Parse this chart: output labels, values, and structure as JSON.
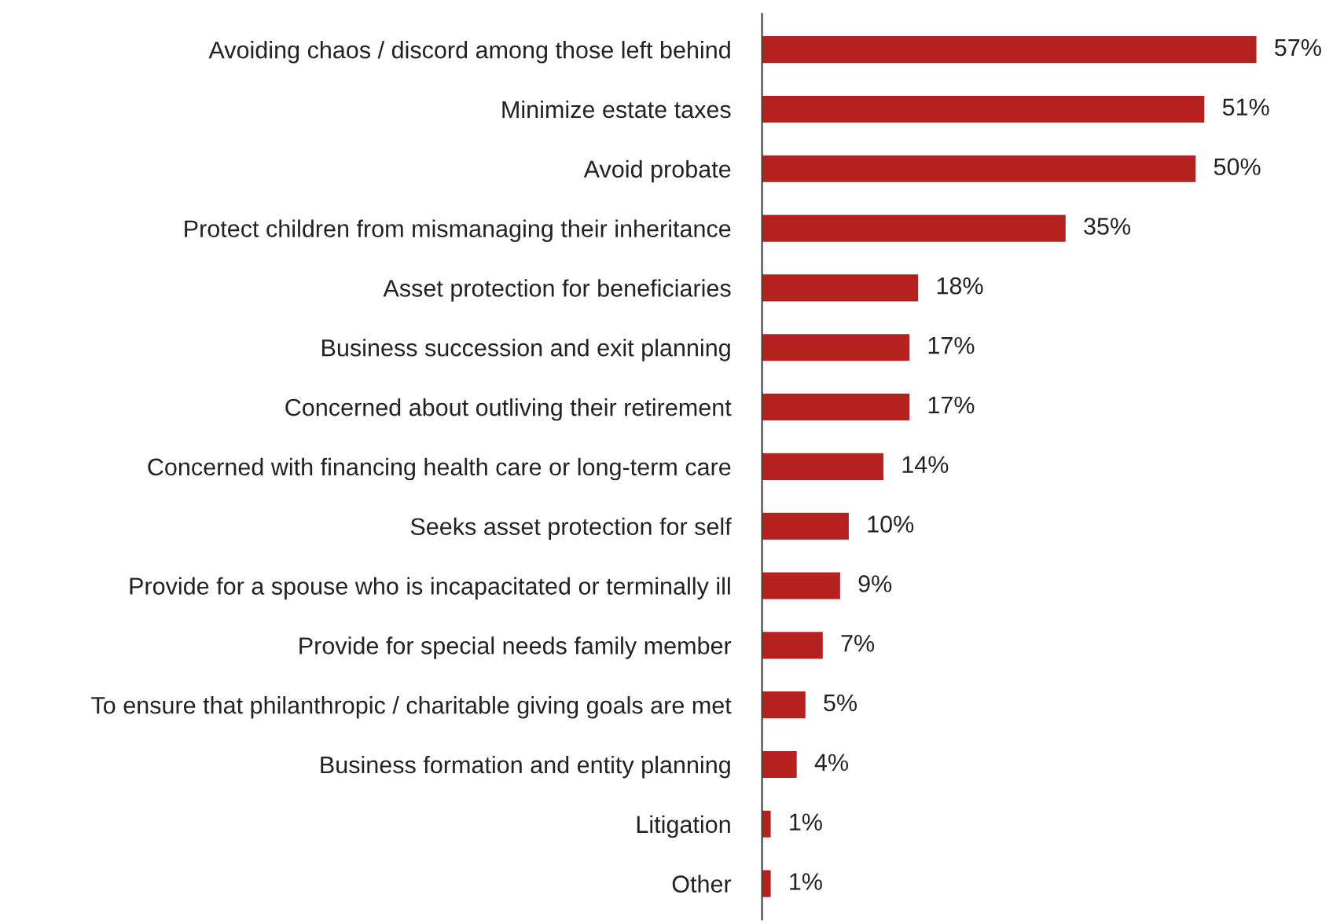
{
  "chart_data": {
    "type": "bar",
    "orientation": "horizontal",
    "categories": [
      "Avoiding chaos / discord among those left behind",
      "Minimize estate taxes",
      "Avoid probate",
      "Protect children from mismanaging their inheritance",
      "Asset protection for beneficiaries",
      "Business succession and exit planning",
      "Concerned about outliving their retirement",
      "Concerned with financing health care or long-term care",
      "Seeks asset protection for self",
      "Provide for a spouse who is incapacitated or terminally ill",
      "Provide for special needs family member",
      "To ensure that philanthropic / charitable giving goals are met",
      "Business formation and entity planning",
      "Litigation",
      "Other"
    ],
    "values": [
      57,
      51,
      50,
      35,
      18,
      17,
      17,
      14,
      10,
      9,
      7,
      5,
      4,
      1,
      1
    ],
    "value_labels": [
      "57%",
      "51%",
      "50%",
      "35%",
      "18%",
      "17%",
      "17%",
      "14%",
      "10%",
      "9%",
      "7%",
      "5%",
      "4%",
      "1%",
      "1%"
    ],
    "color": "#b5211e",
    "grid": false,
    "legend": false
  }
}
